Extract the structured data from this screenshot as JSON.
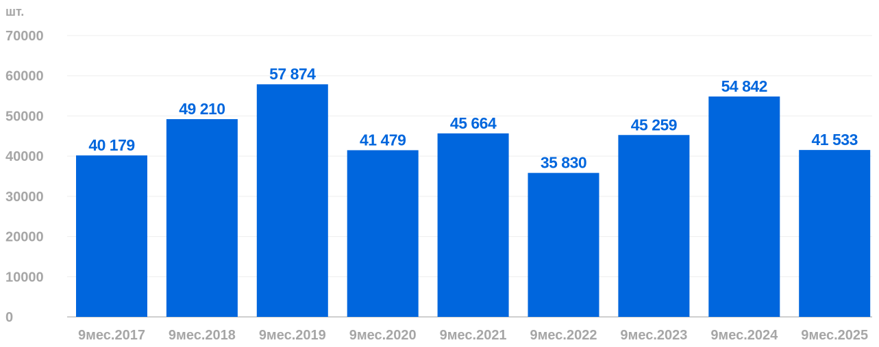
{
  "chart_data": {
    "type": "bar",
    "unit_label": "шт.",
    "categories": [
      "9мес.2017",
      "9мес.2018",
      "9мес.2019",
      "9мес.2020",
      "9мес.2021",
      "9мес.2022",
      "9мес.2023",
      "9мес.2024",
      "9мес.2025"
    ],
    "values": [
      40179,
      49210,
      57874,
      41479,
      45664,
      35830,
      45259,
      54842,
      41533
    ],
    "data_labels": [
      "40 179",
      "49 210",
      "57 874",
      "41 479",
      "45 664",
      "35 830",
      "45 259",
      "54 842",
      "41 533"
    ],
    "ylim": [
      0,
      70000
    ],
    "yticks": [
      "0",
      "10000",
      "20000",
      "30000",
      "40000",
      "50000",
      "60000",
      "70000"
    ],
    "grid": true,
    "legend": "none",
    "colors": {
      "bar": "#0066dd",
      "data_label": "#0066dd",
      "tick": "#a6a6a6",
      "grid": "#eeeeee"
    }
  }
}
